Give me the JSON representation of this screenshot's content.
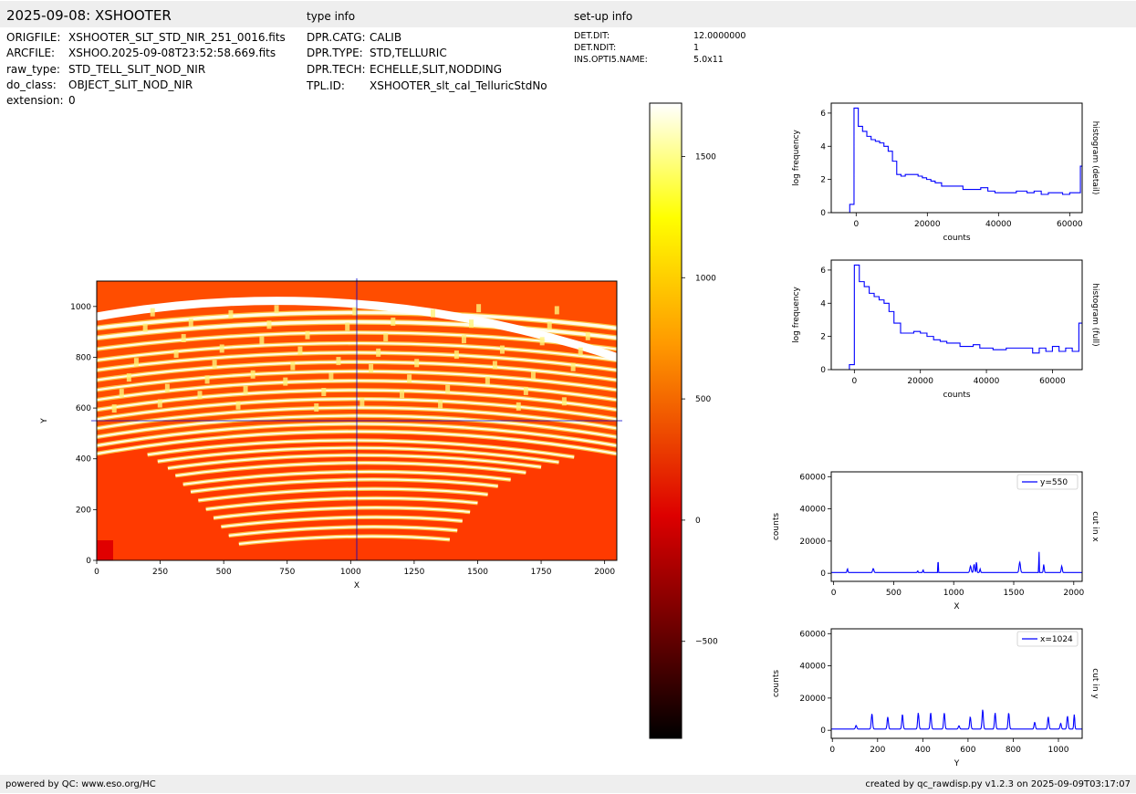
{
  "header": {
    "title": "2025-09-08: XSHOOTER",
    "type_info_heading": "type info",
    "setup_info_heading": "set-up info"
  },
  "file_info": [
    {
      "key": "ORIGFILE:",
      "value": "XSHOOTER_SLT_STD_NIR_251_0016.fits"
    },
    {
      "key": "ARCFILE:",
      "value": "XSHOO.2025-09-08T23:52:58.669.fits"
    },
    {
      "key": "raw_type:",
      "value": "STD_TELL_SLIT_NOD_NIR"
    },
    {
      "key": "do_class:",
      "value": "OBJECT_SLIT_NOD_NIR"
    },
    {
      "key": "extension:",
      "value": "0"
    }
  ],
  "type_info": [
    {
      "key": "DPR.CATG:",
      "value": "CALIB"
    },
    {
      "key": "DPR.TYPE:",
      "value": "STD,TELLURIC"
    },
    {
      "key": "DPR.TECH:",
      "value": "ECHELLE,SLIT,NODDING"
    },
    {
      "key": "TPL.ID:",
      "value": "XSHOOTER_slt_cal_TelluricStdNo"
    }
  ],
  "setup_info": [
    {
      "key": "DET.DIT:",
      "value": "12.0000000"
    },
    {
      "key": "DET.NDIT:",
      "value": "1"
    },
    {
      "key": "INS.OPTI5.NAME:",
      "value": "5.0x11"
    }
  ],
  "footer": {
    "left": "powered by QC: www.eso.org/HC",
    "right": "created by qc_rawdisp.py v1.2.3 on 2025-09-09T03:17:07"
  },
  "colors": {
    "band": "#eeeeee",
    "series": "#0000ff",
    "axis": "#000000"
  },
  "chart_data": [
    {
      "type": "heatmap",
      "xlabel": "X",
      "ylabel": "Y",
      "xlim": [
        0,
        2048
      ],
      "ylim": [
        0,
        1100
      ],
      "xticks": [
        0,
        250,
        500,
        750,
        1000,
        1250,
        1500,
        1750,
        2000
      ],
      "yticks": [
        0,
        200,
        400,
        600,
        800,
        1000
      ],
      "crosshair": {
        "x": 1024,
        "y": 550
      },
      "colormap": "hot",
      "colorbar": {
        "range": [
          -900,
          1720
        ],
        "ticks": [
          -500,
          0,
          500,
          1000,
          1500
        ],
        "tick_labels": [
          "−500",
          "0",
          "500",
          "1000",
          "1500"
        ]
      }
    },
    {
      "type": "line",
      "ylabel": "log frequency",
      "xlabel": "counts",
      "side_label": "histogram (detail)",
      "xlim": [
        -7000,
        63500
      ],
      "ylim": [
        0,
        6.6
      ],
      "xticks": [
        0,
        20000,
        40000,
        60000
      ],
      "yticks": [
        0,
        2,
        4,
        6
      ],
      "x": [
        -3000,
        -1800,
        -600,
        600,
        1800,
        3000,
        4200,
        5400,
        6600,
        7800,
        9000,
        10200,
        11400,
        12600,
        13800,
        15000,
        16200,
        17400,
        18600,
        19800,
        21000,
        22200,
        24000,
        27000,
        30000,
        33000,
        35000,
        37000,
        39000,
        42000,
        45000,
        48000,
        50000,
        52000,
        54000,
        56000,
        58000,
        60000,
        62000,
        63000
      ],
      "y": [
        0,
        0.5,
        6.3,
        5.2,
        4.9,
        4.6,
        4.4,
        4.3,
        4.2,
        4.0,
        3.7,
        3.1,
        2.3,
        2.2,
        2.3,
        2.3,
        2.3,
        2.2,
        2.1,
        2.0,
        1.9,
        1.8,
        1.6,
        1.6,
        1.4,
        1.4,
        1.5,
        1.3,
        1.2,
        1.2,
        1.3,
        1.2,
        1.3,
        1.1,
        1.2,
        1.2,
        1.1,
        1.2,
        1.2,
        2.8
      ]
    },
    {
      "type": "line",
      "ylabel": "log frequency",
      "xlabel": "counts",
      "side_label": "histogram (full)",
      "xlim": [
        -7000,
        69000
      ],
      "ylim": [
        0,
        6.6
      ],
      "xticks": [
        0,
        20000,
        40000,
        60000
      ],
      "yticks": [
        0,
        2,
        4,
        6
      ],
      "x": [
        -3000,
        -1500,
        0,
        1500,
        3000,
        4500,
        6000,
        7500,
        9000,
        10500,
        12000,
        14000,
        16000,
        18000,
        20000,
        22000,
        24000,
        26000,
        28000,
        30000,
        32000,
        34000,
        36000,
        38000,
        40000,
        42000,
        44000,
        46000,
        48000,
        50000,
        52000,
        54000,
        56000,
        58000,
        60000,
        62000,
        64000,
        66000,
        68000
      ],
      "y": [
        0,
        0.3,
        6.3,
        5.3,
        5.0,
        4.6,
        4.4,
        4.2,
        4.0,
        3.5,
        2.8,
        2.2,
        2.2,
        2.3,
        2.2,
        2.0,
        1.8,
        1.7,
        1.6,
        1.6,
        1.4,
        1.4,
        1.5,
        1.3,
        1.3,
        1.2,
        1.2,
        1.3,
        1.3,
        1.3,
        1.3,
        1.0,
        1.3,
        1.1,
        1.4,
        1.1,
        1.3,
        1.1,
        2.8
      ]
    },
    {
      "type": "line",
      "ylabel": "counts",
      "xlabel": "X",
      "side_label": "cut in x",
      "legend": "y=550",
      "xlim": [
        -20,
        2070
      ],
      "ylim": [
        -5000,
        63000
      ],
      "xticks": [
        0,
        500,
        1000,
        1500,
        2000
      ],
      "yticks": [
        0,
        20000,
        40000,
        60000
      ],
      "baseline": 500,
      "peaks": [
        [
          115,
          2300,
          5
        ],
        [
          330,
          2500,
          7
        ],
        [
          700,
          1000,
          4
        ],
        [
          745,
          1800,
          4
        ],
        [
          870,
          13000,
          2
        ],
        [
          1140,
          4000,
          8
        ],
        [
          1170,
          5000,
          7
        ],
        [
          1190,
          7000,
          4
        ],
        [
          1220,
          2200,
          5
        ],
        [
          1550,
          6500,
          8
        ],
        [
          1710,
          18500,
          2
        ],
        [
          1750,
          5000,
          5
        ],
        [
          1900,
          4000,
          6
        ]
      ]
    },
    {
      "type": "line",
      "ylabel": "counts",
      "xlabel": "Y",
      "side_label": "cut in y",
      "legend": "x=1024",
      "xlim": [
        -5,
        1105
      ],
      "ylim": [
        -5000,
        63000
      ],
      "xticks": [
        0,
        200,
        400,
        600,
        800,
        1000
      ],
      "yticks": [
        0,
        20000,
        40000,
        60000
      ],
      "baseline": 800,
      "peaks": [
        [
          105,
          2200,
          4
        ],
        [
          175,
          9500,
          4
        ],
        [
          245,
          7500,
          4
        ],
        [
          310,
          9000,
          4
        ],
        [
          380,
          10000,
          4
        ],
        [
          435,
          10000,
          4
        ],
        [
          495,
          10000,
          4
        ],
        [
          560,
          2000,
          4
        ],
        [
          610,
          7500,
          4
        ],
        [
          665,
          12000,
          4
        ],
        [
          720,
          10000,
          4
        ],
        [
          780,
          10000,
          4
        ],
        [
          895,
          4200,
          4
        ],
        [
          955,
          7500,
          4
        ],
        [
          1010,
          3500,
          4
        ],
        [
          1040,
          8000,
          4
        ],
        [
          1070,
          9000,
          3
        ]
      ]
    }
  ]
}
